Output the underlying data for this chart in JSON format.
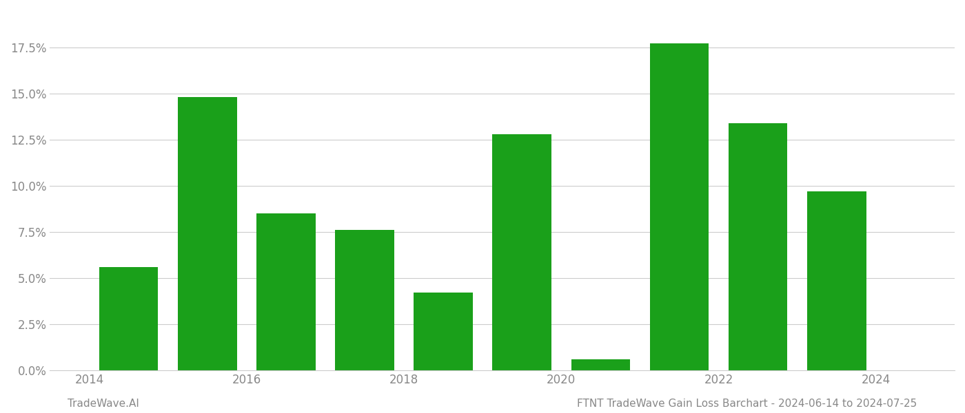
{
  "years": [
    2014,
    2015,
    2016,
    2017,
    2018,
    2019,
    2020,
    2021,
    2022,
    2023
  ],
  "values": [
    0.056,
    0.148,
    0.085,
    0.076,
    0.042,
    0.128,
    0.006,
    0.177,
    0.134,
    0.097
  ],
  "bar_color": "#1aa01a",
  "background_color": "#ffffff",
  "footer_left": "TradeWave.AI",
  "footer_right": "FTNT TradeWave Gain Loss Barchart - 2024-06-14 to 2024-07-25",
  "ylim": [
    0,
    0.195
  ],
  "yticks": [
    0.0,
    0.025,
    0.05,
    0.075,
    0.1,
    0.125,
    0.15,
    0.175
  ],
  "xtick_positions": [
    0.5,
    2.5,
    4.5,
    6.5,
    8.5,
    10.5
  ],
  "xtick_labels": [
    "2014",
    "2016",
    "2018",
    "2020",
    "2022",
    "2024"
  ],
  "grid_color": "#cccccc",
  "tick_label_color": "#888888",
  "footer_color": "#888888",
  "bar_width": 0.75
}
